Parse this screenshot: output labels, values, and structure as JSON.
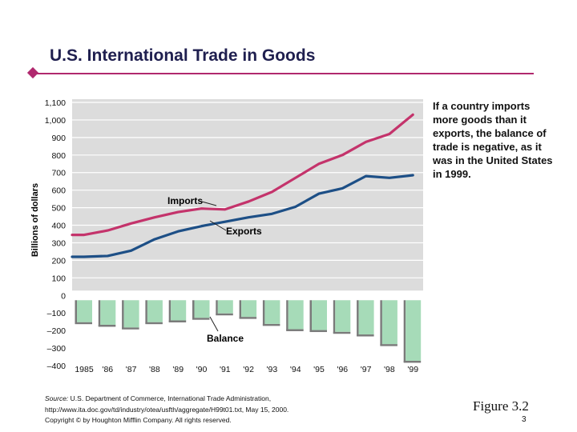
{
  "header": {
    "title": "U.S. International Trade in Goods"
  },
  "annotation": "If a country imports more goods than it exports, the balance of trade is negative, as it was in the United States in 1999.",
  "footer": {
    "source_label": "Source:",
    "source_text": "U.S. Department of Commerce, International Trade Administration,",
    "source_url": "http://www.ita.doc.gov/td/industry/otea/usfth/aggregate/H99t01.txt, May 15, 2000.",
    "copyright": "Copyright © by Houghton Mifflin Company. All rights reserved.",
    "figure_word": "Figure",
    "figure_number": "3.2",
    "page_number": "3"
  },
  "colors": {
    "imports": "#c4336b",
    "exports": "#1d4f86",
    "balance_bar": "#a6dbb8",
    "balance_bar_shadow": "#7a7a7a",
    "plot_background": "#dcdcdc"
  },
  "chart_data": {
    "type": "line",
    "title": "U.S. International Trade in Goods",
    "xlabel": "",
    "ylabel": "Billions of dollars",
    "ylim": [
      -400,
      1100
    ],
    "y_ticks": [
      "1,100",
      "1,000",
      "900",
      "800",
      "700",
      "600",
      "500",
      "400",
      "300",
      "200",
      "100",
      "0",
      "–100",
      "–200",
      "–300",
      "–400"
    ],
    "y_tick_values": [
      1100,
      1000,
      900,
      800,
      700,
      600,
      500,
      400,
      300,
      200,
      100,
      0,
      -100,
      -200,
      -300,
      -400
    ],
    "categories": [
      "1985",
      "'86",
      "'87",
      "'88",
      "'89",
      "'90",
      "'91",
      "'92",
      "'93",
      "'94",
      "'95",
      "'96",
      "'97",
      "'98",
      "'99"
    ],
    "series": [
      {
        "name": "Imports",
        "type": "line",
        "values": [
          345,
          370,
          410,
          445,
          475,
          495,
          490,
          535,
          590,
          670,
          750,
          800,
          875,
          920,
          1030
        ]
      },
      {
        "name": "Exports",
        "type": "line",
        "values": [
          220,
          225,
          255,
          320,
          365,
          395,
          420,
          445,
          465,
          505,
          580,
          610,
          680,
          670,
          685
        ]
      },
      {
        "name": "Balance",
        "type": "bar",
        "values": [
          -125,
          -140,
          -155,
          -125,
          -115,
          -100,
          -75,
          -95,
          -135,
          -165,
          -170,
          -180,
          -195,
          -250,
          -345
        ]
      }
    ],
    "labels": {
      "imports": "Imports",
      "exports": "Exports",
      "balance": "Balance"
    }
  }
}
